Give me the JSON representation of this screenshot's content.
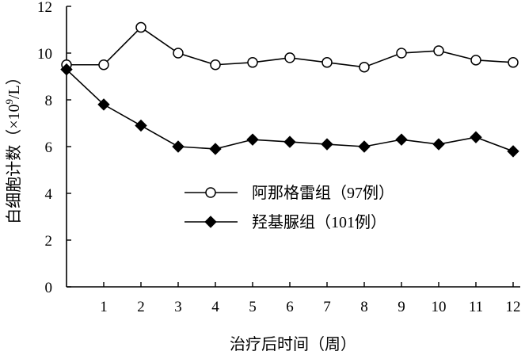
{
  "chart_data": {
    "type": "line",
    "xlabel": "治疗后时间（周）",
    "ylabel": "白细胞计数（×10⁹/L）",
    "ylabel_parts": {
      "pre": "白细胞计数（×10",
      "sup": "9",
      "post": "/L）"
    },
    "x": [
      0,
      1,
      2,
      3,
      4,
      5,
      6,
      7,
      8,
      9,
      10,
      11,
      12
    ],
    "x_tick_labels": [
      "1",
      "2",
      "3",
      "4",
      "5",
      "6",
      "7",
      "8",
      "9",
      "10",
      "11",
      "12"
    ],
    "y_tick_labels": [
      "0",
      "2",
      "4",
      "6",
      "8",
      "10",
      "12"
    ],
    "xlim": [
      0,
      12
    ],
    "ylim": [
      0,
      12
    ],
    "grid": false,
    "legend_position": "center",
    "series": [
      {
        "name": "阿那格雷组（97例）",
        "marker": "open-circle",
        "color": "#000000",
        "values": [
          9.5,
          9.5,
          11.1,
          10.0,
          9.5,
          9.6,
          9.8,
          9.6,
          9.4,
          10.0,
          10.1,
          9.7,
          9.6
        ]
      },
      {
        "name": "羟基脲组（101例）",
        "marker": "filled-diamond",
        "color": "#000000",
        "values": [
          9.3,
          7.8,
          6.9,
          6.0,
          5.9,
          6.3,
          6.2,
          6.1,
          6.0,
          6.3,
          6.1,
          6.4,
          5.8
        ]
      }
    ]
  }
}
